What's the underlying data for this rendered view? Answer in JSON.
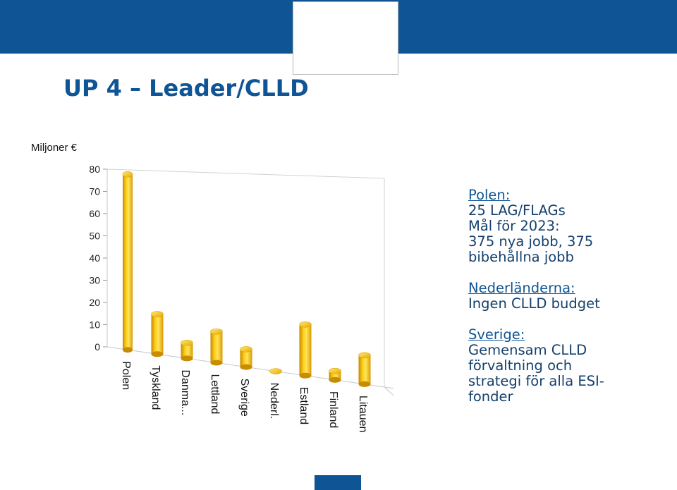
{
  "slide": {
    "title": "UP 4 – Leader/CLLD",
    "unit_label": "Miljoner €"
  },
  "colors": {
    "header_bar": "#0f5494",
    "title": "#0f5494",
    "bar_fill": "#f7c800",
    "note_text": "#14406c"
  },
  "notes": [
    {
      "heading": "Polen:",
      "lines": [
        "25 LAG/FLAGs",
        "Mål för 2023:",
        "375 nya jobb, 375",
        "bibehållna jobb"
      ]
    },
    {
      "heading": "Nederländerna:",
      "lines": [
        "Ingen CLLD budget"
      ]
    },
    {
      "heading": "Sverige:",
      "lines": [
        "Gemensam CLLD",
        "förvaltning och",
        "strategi för alla ESI-",
        "fonder"
      ]
    }
  ],
  "chart_data": {
    "type": "bar",
    "title": "",
    "xlabel": "",
    "ylabel": "Miljoner €",
    "ylim": [
      0,
      80
    ],
    "yticks": [
      0,
      10,
      20,
      30,
      40,
      50,
      60,
      70,
      80
    ],
    "grid": false,
    "style": "3d-cylinder",
    "categories": [
      "Polen",
      "Tyskland",
      "Danma...",
      "Lettland",
      "Sverige",
      "Nederl.",
      "Estland",
      "Finland",
      "Litauen"
    ],
    "values": [
      79,
      18,
      7,
      14,
      8,
      0,
      23,
      4,
      13
    ]
  }
}
